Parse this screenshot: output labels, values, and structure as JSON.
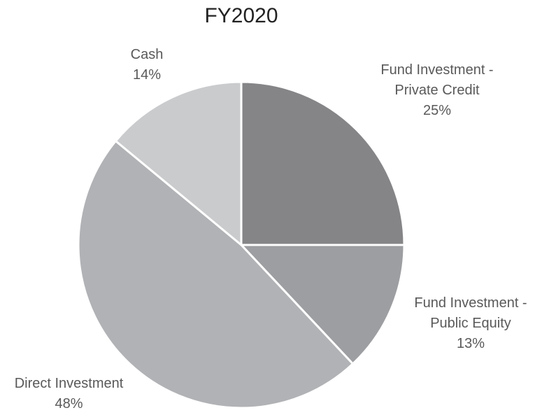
{
  "chart_data": {
    "type": "pie",
    "title": "FY2020",
    "categories": [
      "Fund Investment - Private Credit",
      "Fund Investment - Public Equity",
      "Direct Investment",
      "Cash"
    ],
    "values": [
      25,
      13,
      48,
      14
    ],
    "value_labels": [
      "25%",
      "13%",
      "48%",
      "14%"
    ],
    "colors": [
      "#858588",
      "#9d9ea1",
      "#b1b2b5",
      "#cacbcd"
    ]
  }
}
